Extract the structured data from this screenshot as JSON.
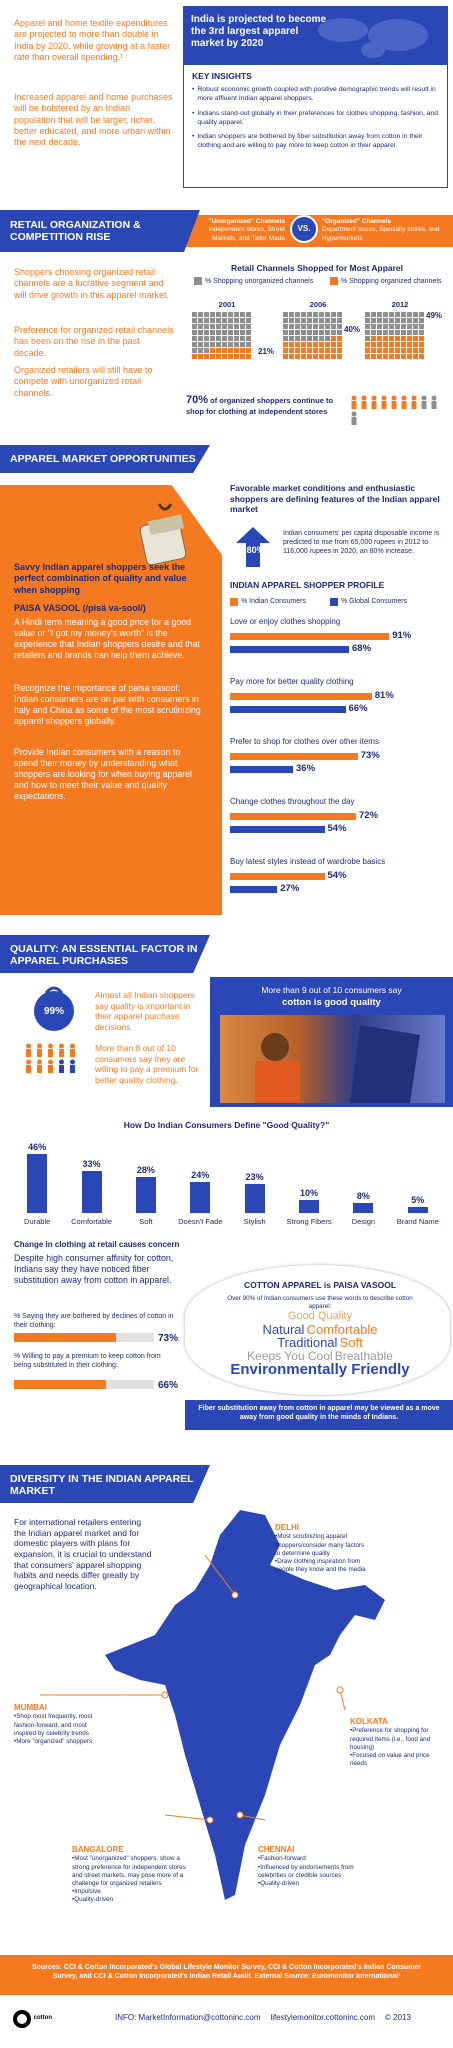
{
  "intro": {
    "para1": "Apparel and home textile expenditures are projected to more than double in India by 2020, while growing at a faster rate than overall spending.¹",
    "para2": "Increased apparel and home purchases will be bolstered by an Indian population that will be larger, richer, better educated, and more urban within the next decade.",
    "banner": "India is projected to become the 3rd largest apparel market by 2020",
    "key_insights_title": "KEY INSIGHTS",
    "insights": [
      "Robust economic growth coupled with positive demographic trends will result in more affluent Indian apparel shoppers.",
      "Indians stand-out globally in their preferences for clothes shopping, fashion, and quality apparel.",
      "Indian shoppers are bothered by fiber substitution away from cotton in their clothing and are willing to pay more to keep cotton in their apparel."
    ]
  },
  "retail": {
    "header": "RETAIL ORGANIZATION & COMPETITION RISE",
    "unorganized_title": "\"Unorganized\" Channels",
    "unorganized_desc": "Independent stores, Street Markets, and Tailor Made",
    "vs": "VS.",
    "organized_title": "\"Organized\" Channels",
    "organized_desc": "Department stores, Specialty stores, and Hypermarkets",
    "para1": "Shoppers choosing organized retail channels are a lucrative segment and will drive growth in this apparel market.",
    "para2": "Preference for organized retail channels has been on the rise in the past decade.",
    "para3": "Organized retailers will still have to compete with unorganized retail channels.",
    "chart_title": "Retail Channels Shopped for Most Apparel",
    "legend_unorg": "% Shopping unorganized channels",
    "legend_org": "% Shopping organized channels",
    "years": [
      "2001",
      "2006",
      "2012"
    ],
    "org_pcts": [
      "21%",
      "40%",
      "49%"
    ],
    "callout_pct": "70%",
    "callout_text": "of organized shoppers continue to shop for clothing at independent stores",
    "colors": {
      "gray": "#8e8e8e",
      "orange": "#f47920"
    }
  },
  "opportunities": {
    "header": "APPAREL MARKET OPPORTUNITIES",
    "savvy": "Savvy Indian apparel shoppers seek the perfect combination of quality and value when shopping",
    "paisa_title": "PAISA VASOOL (/pisä va-sool/)",
    "paisa_def": "A Hindi term meaning a good price for a good value or \"I got my money's worth\" is the experience that Indian shoppers desire and that retailers and brands can help them achieve.",
    "para2": "Recognize the importance of paisa vasool: Indian consumers are on par with consumers in Italy and China as some of the most scrutinizing apparel shoppers globally.",
    "para3": "Provide Indian consumers with a reason to spend their money by understanding what shoppers are looking for when buying apparel and how to meet their value and quality expectations.",
    "favorable": "Favorable market conditions and enthusiastic shoppers are defining features of the Indian apparel market",
    "growth_badge": "+80%",
    "growth_text": "Indian consumers' per capita disposable income is predicted to rise from 65,000 rupees in 2012 to 116,000 rupees in 2020, an 80% increase.",
    "profile_title": "INDIAN APPAREL SHOPPER PROFILE",
    "legend_indian": "% Indian Consumers",
    "legend_global": "% Global Consumers"
  },
  "quality": {
    "header": "QUALITY: AN ESSENTIAL FACTOR IN APPAREL PURCHASES",
    "badge": "99%",
    "stat1": "Almost all Indian shoppers say quality is important in their apparel purchase decisions.",
    "stat2": "More than 8 out of 10 consumers say they are willing to pay a premium for better quality clothing.",
    "cotton_good_1": "More than 9 out of 10 consumers say",
    "cotton_good_2": "cotton is good quality",
    "define_title": "How Do Indian Consumers Define \"Good Quality?\"",
    "change_title": "Change in clothing at retail causes concern",
    "change_text": "Despite high consumer affinity for cotton, Indians say they have noticed fiber substitution away from cotton in apparel.",
    "bothered_label": "% Saying they are bothered by declines of cotton in their clothing:",
    "bothered_pct": "73%",
    "bothered_val": 73,
    "premium_label": "% Willing to pay a premium to keep cotton from being substituted in their clothing:",
    "premium_pct": "66%",
    "premium_val": 66,
    "paisa_cotton_title": "COTTON APPAREL is PAISA VASOOL",
    "paisa_cotton_sub": "Over 90% of Indian consumers use these words to describe cotton apparel:",
    "words": [
      "Good Quality",
      "Natural",
      "Comfortable",
      "Traditional",
      "Soft",
      "Keeps You Cool",
      "Breathable",
      "Environmentally Friendly"
    ],
    "fiber_note": "Fiber substitution away from cotton in apparel may be viewed as a move away from good quality in the minds of Indians."
  },
  "diversity": {
    "header": "DIVERSITY IN THE INDIAN APPAREL MARKET",
    "intro": "For international retailers entering the Indian apparel market and for domestic players with plans for expansion, it is crucial to understand that consumers' apparel shopping habits and needs differ greatly by geographical location.",
    "cities": [
      {
        "name": "DELHI",
        "points": [
          "Most scrutinizing apparel shoppers/consider many factors to determine quality",
          "Draw clothing inspiration from people they know and the media"
        ]
      },
      {
        "name": "MUMBAI",
        "points": [
          "Shop most frequently, most fashion-forward, and most inspired by celebrity trends",
          "More \"organized\" shoppers"
        ]
      },
      {
        "name": "KOLKATA",
        "points": [
          "Preference for shopping for required items (i.e., food and housing)",
          "Focused on value and price needs"
        ]
      },
      {
        "name": "BANGALORE",
        "points": [
          "Most \"unorganized\" shoppers, show a strong preference for independent stores and street markets, may pose more of a challenge for organized retailers",
          "Impulsive",
          "Quality-driven"
        ]
      },
      {
        "name": "CHENNAI",
        "points": [
          "Fashion-forward",
          "Influenced by endorsements from celebrities or credible sources",
          "Quality-driven"
        ]
      }
    ]
  },
  "footer": {
    "sources": "Sources: CCI & Cotton Incorporated's Global Lifestyle Monitor Survey, CCI & Cotton Incorporated's Indian Consumer Survey, and CCI & Cotton Incorporated's Indian Retail Audit. External Source: Euromonitor International¹",
    "info": "INFO: MarketInformation@cottoninc.com",
    "site": "lifestylemonitor.cottoninc.com",
    "copyright": "© 2013",
    "logo_text": "cotton"
  },
  "chart_data": [
    {
      "type": "bar",
      "title": "INDIAN APPAREL SHOPPER PROFILE",
      "categories": [
        "Love or enjoy clothes shopping",
        "Pay more for better quality clothing",
        "Prefer to shop for clothes over other items",
        "Change clothes throughout the day",
        "Buy latest styles instead of wardrobe basics"
      ],
      "series": [
        {
          "name": "% Indian Consumers",
          "values": [
            91,
            81,
            73,
            72,
            54
          ],
          "color": "#f47920"
        },
        {
          "name": "% Global Consumers",
          "values": [
            68,
            66,
            36,
            54,
            27
          ],
          "color": "#2b47b6"
        }
      ],
      "xlim": [
        0,
        100
      ]
    },
    {
      "type": "bar",
      "title": "How Do Indian Consumers Define \"Good Quality?\"",
      "categories": [
        "Durable",
        "Comfortable",
        "Soft",
        "Doesn't Fade",
        "Stylish",
        "Strong Fibers",
        "Design",
        "Brand Name"
      ],
      "values": [
        46,
        33,
        28,
        24,
        23,
        10,
        8,
        5
      ],
      "ylim": [
        0,
        50
      ],
      "color": "#2b47b6"
    },
    {
      "type": "bar",
      "title": "Retail Channels Shopped for Most Apparel",
      "categories": [
        "2001",
        "2006",
        "2012"
      ],
      "series": [
        {
          "name": "% Shopping organized channels",
          "values": [
            21,
            40,
            49
          ]
        }
      ]
    }
  ]
}
